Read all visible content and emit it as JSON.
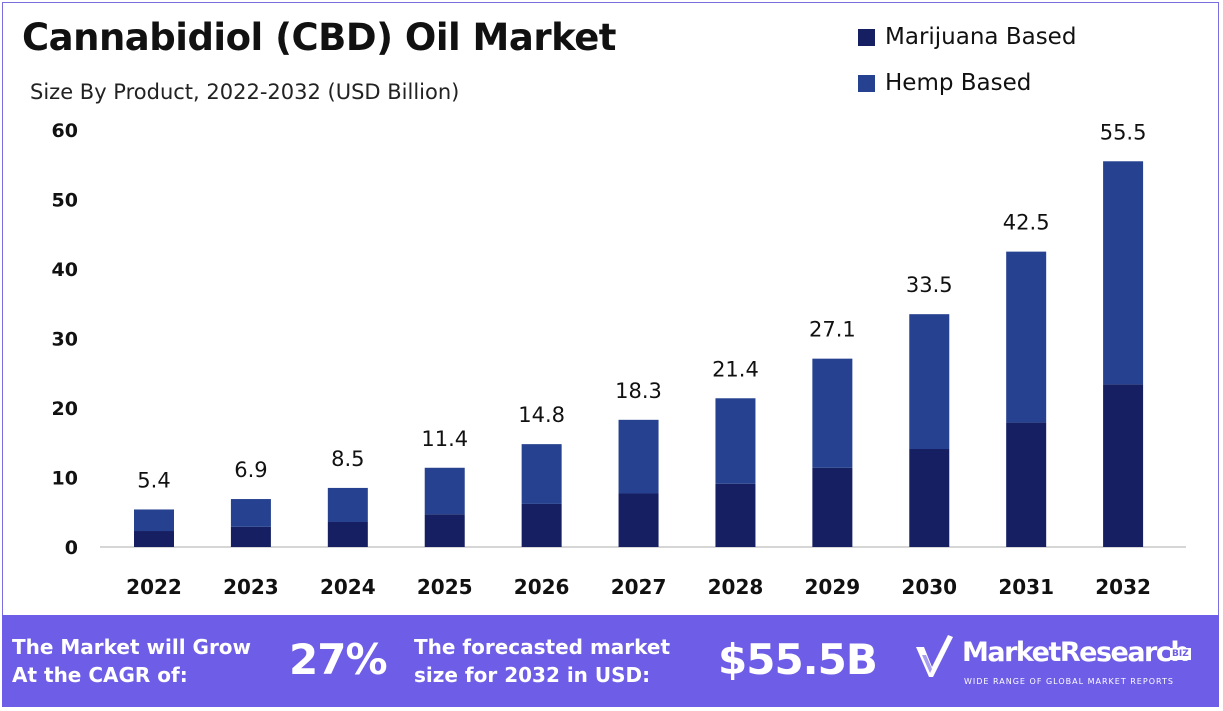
{
  "header": {
    "title": "Cannabidiol (CBD) Oil Market",
    "subtitle": "Size By Product, 2022-2032 (USD Billion)"
  },
  "legend": {
    "items": [
      {
        "label": "Marijuana Based",
        "color": "#171f63"
      },
      {
        "label": "Hemp Based",
        "color": "#26418f"
      }
    ]
  },
  "chart_data": {
    "type": "bar",
    "stacked": true,
    "categories": [
      "2022",
      "2023",
      "2024",
      "2025",
      "2026",
      "2027",
      "2028",
      "2029",
      "2030",
      "2031",
      "2032"
    ],
    "series": [
      {
        "name": "Marijuana Based",
        "color": "#171f63",
        "values": [
          2.3,
          2.9,
          3.6,
          4.7,
          6.2,
          7.7,
          9.1,
          11.4,
          14.1,
          17.9,
          23.4
        ]
      },
      {
        "name": "Hemp Based",
        "color": "#26418f",
        "values": [
          3.1,
          4.0,
          4.9,
          6.7,
          8.6,
          10.6,
          12.3,
          15.7,
          19.4,
          24.6,
          32.1
        ]
      }
    ],
    "totals": [
      5.4,
      6.9,
      8.5,
      11.4,
      14.8,
      18.3,
      21.4,
      27.1,
      33.5,
      42.5,
      55.5
    ],
    "total_labels": [
      "5.4",
      "6.9",
      "8.5",
      "11.4",
      "14.8",
      "18.3",
      "21.4",
      "27.1",
      "33.5",
      "42.5",
      "55.5"
    ],
    "yticks": [
      0,
      10,
      20,
      30,
      40,
      50,
      60
    ],
    "ylim": [
      0,
      60
    ],
    "grid": false,
    "legend_position": "top-right"
  },
  "footer": {
    "cagr_label": "The Market will Grow At the CAGR of:",
    "cagr_value": "27%",
    "forecast_label": "The forecasted market size for 2032 in USD:",
    "forecast_value": "$55.5B",
    "brand_name": "MarketResearch",
    "brand_badge": "BIZ",
    "brand_tagline": "WIDE RANGE OF GLOBAL MARKET REPORTS",
    "background_color": "#6e5de6"
  }
}
